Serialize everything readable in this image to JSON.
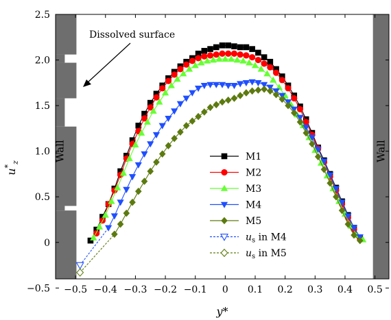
{
  "chart_data": {
    "type": "line",
    "title": "",
    "xlabel": "y*",
    "ylabel": "u*z",
    "xlim": [
      -0.5667,
      0.5467
    ],
    "ylim": [
      -0.4,
      2.5
    ],
    "x_ticks": [
      "-0.5",
      "-0.4",
      "-0.3",
      "-0.2",
      "-0.1",
      "0",
      "0.1",
      "0.2",
      "0.3",
      "0.4",
      "0.5"
    ],
    "y_ticks": [
      "-0.5",
      "0",
      "0.5",
      "1.0",
      "1.5",
      "2.0",
      "2.5"
    ],
    "grid": false,
    "legend_position": "lower-right",
    "annotation": "Dissolved surface",
    "wall_labels": {
      "left": "Wall",
      "right": "Wall"
    },
    "colors": {
      "M1": "#000000",
      "M2": "#ff0000",
      "M3": "#66ff33",
      "M4": "#1f4fff",
      "M5": "#5c7a0f",
      "wall": "#6e6e6e"
    },
    "series": [
      {
        "name": "M1",
        "marker": "square",
        "color": "#000000",
        "x": [
          -0.45,
          -0.43,
          -0.41,
          -0.39,
          -0.37,
          -0.35,
          -0.33,
          -0.31,
          -0.29,
          -0.27,
          -0.25,
          -0.23,
          -0.21,
          -0.19,
          -0.17,
          -0.15,
          -0.13,
          -0.11,
          -0.09,
          -0.07,
          -0.05,
          -0.03,
          -0.01,
          0.01,
          0.03,
          0.05,
          0.07,
          0.09,
          0.11,
          0.13,
          0.15,
          0.17,
          0.19,
          0.21,
          0.23,
          0.25,
          0.27,
          0.29,
          0.31,
          0.33,
          0.35,
          0.37,
          0.39,
          0.41,
          0.43,
          0.45
        ],
        "y": [
          0.02,
          0.14,
          0.28,
          0.42,
          0.59,
          0.78,
          0.95,
          1.12,
          1.28,
          1.41,
          1.53,
          1.63,
          1.72,
          1.8,
          1.87,
          1.93,
          1.98,
          2.02,
          2.07,
          2.1,
          2.12,
          2.14,
          2.16,
          2.16,
          2.15,
          2.14,
          2.14,
          2.12,
          2.08,
          2.03,
          1.98,
          1.9,
          1.82,
          1.72,
          1.61,
          1.49,
          1.35,
          1.2,
          1.04,
          0.9,
          0.75,
          0.6,
          0.45,
          0.3,
          0.16,
          0.05
        ]
      },
      {
        "name": "M2",
        "marker": "circle",
        "color": "#ff0000",
        "x": [
          -0.43,
          -0.41,
          -0.39,
          -0.37,
          -0.35,
          -0.33,
          -0.31,
          -0.29,
          -0.27,
          -0.25,
          -0.23,
          -0.21,
          -0.19,
          -0.17,
          -0.15,
          -0.13,
          -0.11,
          -0.09,
          -0.07,
          -0.05,
          -0.03,
          -0.01,
          0.01,
          0.03,
          0.05,
          0.07,
          0.09,
          0.11,
          0.13,
          0.15,
          0.17,
          0.19,
          0.21,
          0.23,
          0.25,
          0.27,
          0.29,
          0.31,
          0.33,
          0.35,
          0.37,
          0.39,
          0.41,
          0.43,
          0.45
        ],
        "y": [
          0.1,
          0.24,
          0.42,
          0.57,
          0.74,
          0.92,
          1.08,
          1.22,
          1.36,
          1.48,
          1.59,
          1.69,
          1.77,
          1.84,
          1.9,
          1.95,
          1.99,
          2.02,
          2.04,
          2.05,
          2.06,
          2.07,
          2.07,
          2.07,
          2.06,
          2.05,
          2.03,
          2.0,
          1.96,
          1.92,
          1.86,
          1.78,
          1.69,
          1.58,
          1.46,
          1.32,
          1.18,
          1.03,
          0.88,
          0.72,
          0.57,
          0.42,
          0.27,
          0.14,
          0.04
        ]
      },
      {
        "name": "M3",
        "marker": "triangle-up",
        "color": "#66ff33",
        "x": [
          -0.44,
          -0.42,
          -0.4,
          -0.38,
          -0.36,
          -0.34,
          -0.32,
          -0.3,
          -0.28,
          -0.26,
          -0.24,
          -0.22,
          -0.2,
          -0.18,
          -0.16,
          -0.14,
          -0.12,
          -0.1,
          -0.08,
          -0.06,
          -0.04,
          -0.02,
          0.0,
          0.02,
          0.04,
          0.06,
          0.08,
          0.1,
          0.12,
          0.14,
          0.16,
          0.18,
          0.2,
          0.22,
          0.24,
          0.26,
          0.28,
          0.3,
          0.32,
          0.34,
          0.36,
          0.38,
          0.4,
          0.42,
          0.44,
          0.46
        ],
        "y": [
          0.05,
          0.17,
          0.3,
          0.45,
          0.6,
          0.76,
          0.92,
          1.07,
          1.2,
          1.32,
          1.44,
          1.54,
          1.64,
          1.72,
          1.79,
          1.85,
          1.9,
          1.94,
          1.97,
          1.99,
          2.0,
          2.01,
          2.01,
          2.01,
          2.0,
          1.99,
          1.97,
          1.94,
          1.9,
          1.85,
          1.78,
          1.7,
          1.61,
          1.51,
          1.4,
          1.28,
          1.15,
          1.01,
          0.87,
          0.73,
          0.59,
          0.45,
          0.31,
          0.18,
          0.08,
          0.03
        ]
      },
      {
        "name": "M4",
        "marker": "triangle-down",
        "color": "#1f4fff",
        "x": [
          -0.39,
          -0.37,
          -0.35,
          -0.33,
          -0.31,
          -0.29,
          -0.27,
          -0.25,
          -0.23,
          -0.21,
          -0.19,
          -0.17,
          -0.15,
          -0.13,
          -0.11,
          -0.09,
          -0.07,
          -0.05,
          -0.03,
          -0.01,
          0.01,
          0.03,
          0.05,
          0.07,
          0.09,
          0.11,
          0.13,
          0.15,
          0.17,
          0.19,
          0.21,
          0.23,
          0.25,
          0.27,
          0.29,
          0.31,
          0.33,
          0.35,
          0.37,
          0.39,
          0.41,
          0.43,
          0.45
        ],
        "y": [
          0.16,
          0.29,
          0.44,
          0.58,
          0.72,
          0.85,
          0.97,
          1.08,
          1.18,
          1.28,
          1.36,
          1.44,
          1.52,
          1.58,
          1.64,
          1.69,
          1.72,
          1.73,
          1.73,
          1.73,
          1.72,
          1.72,
          1.74,
          1.75,
          1.76,
          1.75,
          1.73,
          1.7,
          1.66,
          1.61,
          1.54,
          1.46,
          1.37,
          1.26,
          1.15,
          1.02,
          0.89,
          0.74,
          0.59,
          0.44,
          0.29,
          0.16,
          0.06
        ]
      },
      {
        "name": "M5",
        "marker": "diamond",
        "color": "#5c7a0f",
        "x": [
          -0.37,
          -0.35,
          -0.33,
          -0.31,
          -0.29,
          -0.27,
          -0.25,
          -0.23,
          -0.21,
          -0.19,
          -0.17,
          -0.15,
          -0.13,
          -0.11,
          -0.09,
          -0.07,
          -0.05,
          -0.03,
          -0.01,
          0.01,
          0.03,
          0.05,
          0.07,
          0.09,
          0.11,
          0.13,
          0.15,
          0.17,
          0.19,
          0.21,
          0.23,
          0.25,
          0.27,
          0.29,
          0.31,
          0.33,
          0.35,
          0.37,
          0.39,
          0.41,
          0.43,
          0.45
        ],
        "y": [
          0.09,
          0.2,
          0.32,
          0.44,
          0.56,
          0.67,
          0.78,
          0.88,
          0.97,
          1.06,
          1.14,
          1.21,
          1.28,
          1.33,
          1.38,
          1.43,
          1.48,
          1.51,
          1.54,
          1.56,
          1.58,
          1.61,
          1.64,
          1.66,
          1.67,
          1.68,
          1.66,
          1.62,
          1.57,
          1.5,
          1.42,
          1.32,
          1.2,
          1.08,
          0.94,
          0.8,
          0.65,
          0.5,
          0.35,
          0.2,
          0.08,
          0.02
        ]
      },
      {
        "name": "u_s in M4",
        "marker": "triangle-down-open",
        "color": "#1f4fff",
        "dashed": true,
        "x": [
          -0.485,
          -0.39
        ],
        "y": [
          -0.25,
          0.16
        ]
      },
      {
        "name": "u_s in M5",
        "marker": "diamond-open",
        "color": "#5c7a0f",
        "dashed": true,
        "x": [
          -0.485,
          -0.37
        ],
        "y": [
          -0.33,
          0.09
        ]
      }
    ],
    "legend": [
      {
        "label": "M1",
        "series": 0
      },
      {
        "label": "M2",
        "series": 1
      },
      {
        "label": "M3",
        "series": 2
      },
      {
        "label": "M4",
        "series": 3
      },
      {
        "label": "M5",
        "series": 4
      },
      {
        "prefix": "u",
        "sub": "s",
        "suffix": " in M4",
        "series": 5
      },
      {
        "prefix": "u",
        "sub": "s",
        "suffix": " in M5",
        "series": 6
      }
    ]
  }
}
